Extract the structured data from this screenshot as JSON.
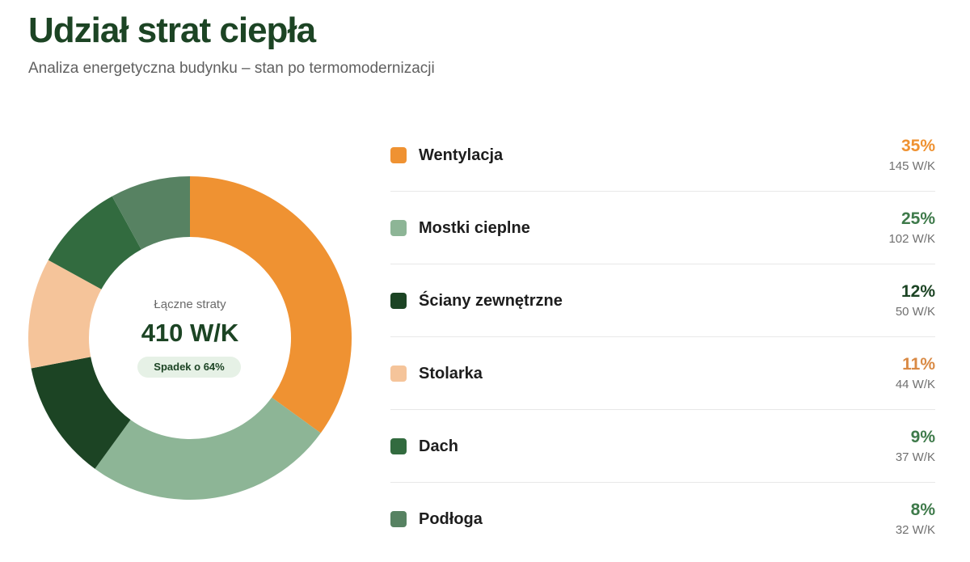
{
  "header": {
    "title": "Udział strat ciepła",
    "subtitle": "Analiza energetyczna budynku – stan po termomodernizacji"
  },
  "center": {
    "label": "Łączne straty",
    "value": "410 W/K",
    "badge": "Spadek o 64%"
  },
  "colors": {
    "title": "#1c4424",
    "pct_orange": "#ef9232",
    "pct_green": "#3e7a4a",
    "badge_bg": "#e6f1e6"
  },
  "chart_data": {
    "type": "pie",
    "variant": "donut",
    "title": "Udział strat ciepła",
    "subtitle": "Analiza energetyczna budynku – stan po termomodernizacji",
    "center_label": "Łączne straty",
    "center_value": "410 W/K",
    "badge": "Spadek o 64%",
    "legend_placement": "right",
    "slices": [
      {
        "label": "Wentylacja",
        "percent": 35,
        "percent_text": "35%",
        "value": 145,
        "value_text": "145 W/K",
        "color": "#ef9232",
        "text_color": "#ef9232"
      },
      {
        "label": "Mostki cieplne",
        "percent": 25,
        "percent_text": "25%",
        "value": 102,
        "value_text": "102 W/K",
        "color": "#8db596",
        "text_color": "#3e7a4a"
      },
      {
        "label": "Ściany zewnętrzne",
        "percent": 12,
        "percent_text": "12%",
        "value": 50,
        "value_text": "50 W/K",
        "color": "#1c4424",
        "text_color": "#1c4424"
      },
      {
        "label": "Stolarka",
        "percent": 11,
        "percent_text": "11%",
        "value": 44,
        "value_text": "44 W/K",
        "color": "#f5c49a",
        "text_color": "#d98a45"
      },
      {
        "label": "Dach",
        "percent": 9,
        "percent_text": "9%",
        "value": 37,
        "value_text": "37 W/K",
        "color": "#326b3f",
        "text_color": "#3e7a4a"
      },
      {
        "label": "Podłoga",
        "percent": 8,
        "percent_text": "8%",
        "value": 32,
        "value_text": "32 W/K",
        "color": "#578262",
        "text_color": "#3e7a4a"
      }
    ]
  }
}
